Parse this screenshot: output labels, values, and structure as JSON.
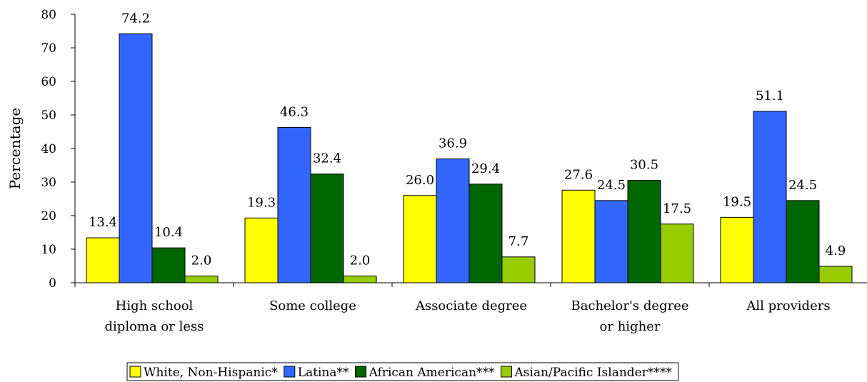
{
  "chart_data": {
    "type": "bar",
    "title": "",
    "xlabel": "",
    "ylabel": "Percentage",
    "ylim": [
      0,
      80
    ],
    "yticks": [
      0,
      10,
      20,
      30,
      40,
      50,
      60,
      70,
      80
    ],
    "categories": [
      [
        "High school",
        "diploma or less"
      ],
      [
        "Some college"
      ],
      [
        "Associate degree"
      ],
      [
        "Bachelor's degree",
        "or higher"
      ],
      [
        "All providers"
      ]
    ],
    "series": [
      {
        "name": "White, Non-Hispanic*",
        "color": "#ffff00",
        "values": [
          13.4,
          19.3,
          26.0,
          27.6,
          19.5
        ]
      },
      {
        "name": "Latina**",
        "color": "#3366ff",
        "values": [
          74.2,
          46.3,
          36.9,
          24.5,
          51.1
        ]
      },
      {
        "name": "African American***",
        "color": "#006600",
        "values": [
          10.4,
          32.4,
          29.4,
          30.5,
          24.5
        ]
      },
      {
        "name": "Asian/Pacific Islander****",
        "color": "#99cc00",
        "values": [
          2.0,
          2.0,
          7.7,
          17.5,
          4.9
        ]
      }
    ],
    "data_labels": true,
    "grid": false,
    "legend_position": "bottom"
  }
}
